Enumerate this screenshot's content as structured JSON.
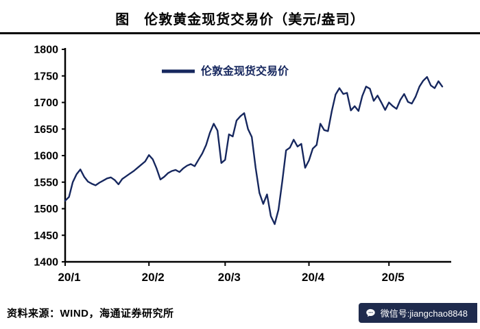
{
  "header": {
    "title": "图　伦敦黄金现货交易价（美元/盎司）"
  },
  "footer": {
    "source": "资料来源：WIND，海通证券研究所",
    "badge": "微信号:jiangchao8848"
  },
  "colors": {
    "line": "#16275e",
    "axis": "#000000",
    "legend_text": "#16275e",
    "badge_bg": "#1f2b4d",
    "badge_text": "#ffffff"
  },
  "chart_data": {
    "type": "line",
    "title": "伦敦黄金现货交易价（美元/盎司）",
    "legend": "伦敦金现货交易价",
    "ylabel": "美元/盎司",
    "ylim": [
      1400,
      1800
    ],
    "ytick_step": 50,
    "grid": false,
    "legend_position": "top-center",
    "x_tick_labels": [
      "20/1",
      "20/2",
      "20/3",
      "20/4",
      "20/5"
    ],
    "x_tick_indices": [
      0,
      22,
      42,
      64,
      85
    ],
    "values": [
      1515,
      1522,
      1550,
      1565,
      1574,
      1560,
      1551,
      1547,
      1544,
      1549,
      1553,
      1557,
      1559,
      1554,
      1546,
      1556,
      1561,
      1566,
      1571,
      1577,
      1583,
      1589,
      1601,
      1593,
      1576,
      1555,
      1560,
      1567,
      1571,
      1573,
      1569,
      1576,
      1581,
      1584,
      1580,
      1592,
      1604,
      1620,
      1643,
      1660,
      1647,
      1586,
      1592,
      1640,
      1636,
      1666,
      1674,
      1680,
      1650,
      1635,
      1577,
      1530,
      1509,
      1527,
      1486,
      1471,
      1498,
      1552,
      1610,
      1615,
      1630,
      1617,
      1622,
      1577,
      1591,
      1613,
      1620,
      1660,
      1648,
      1646,
      1684,
      1715,
      1727,
      1716,
      1718,
      1685,
      1693,
      1684,
      1712,
      1730,
      1726,
      1703,
      1713,
      1700,
      1686,
      1700,
      1693,
      1688,
      1705,
      1716,
      1701,
      1698,
      1711,
      1730,
      1741,
      1748,
      1732,
      1727,
      1740,
      1730
    ]
  }
}
